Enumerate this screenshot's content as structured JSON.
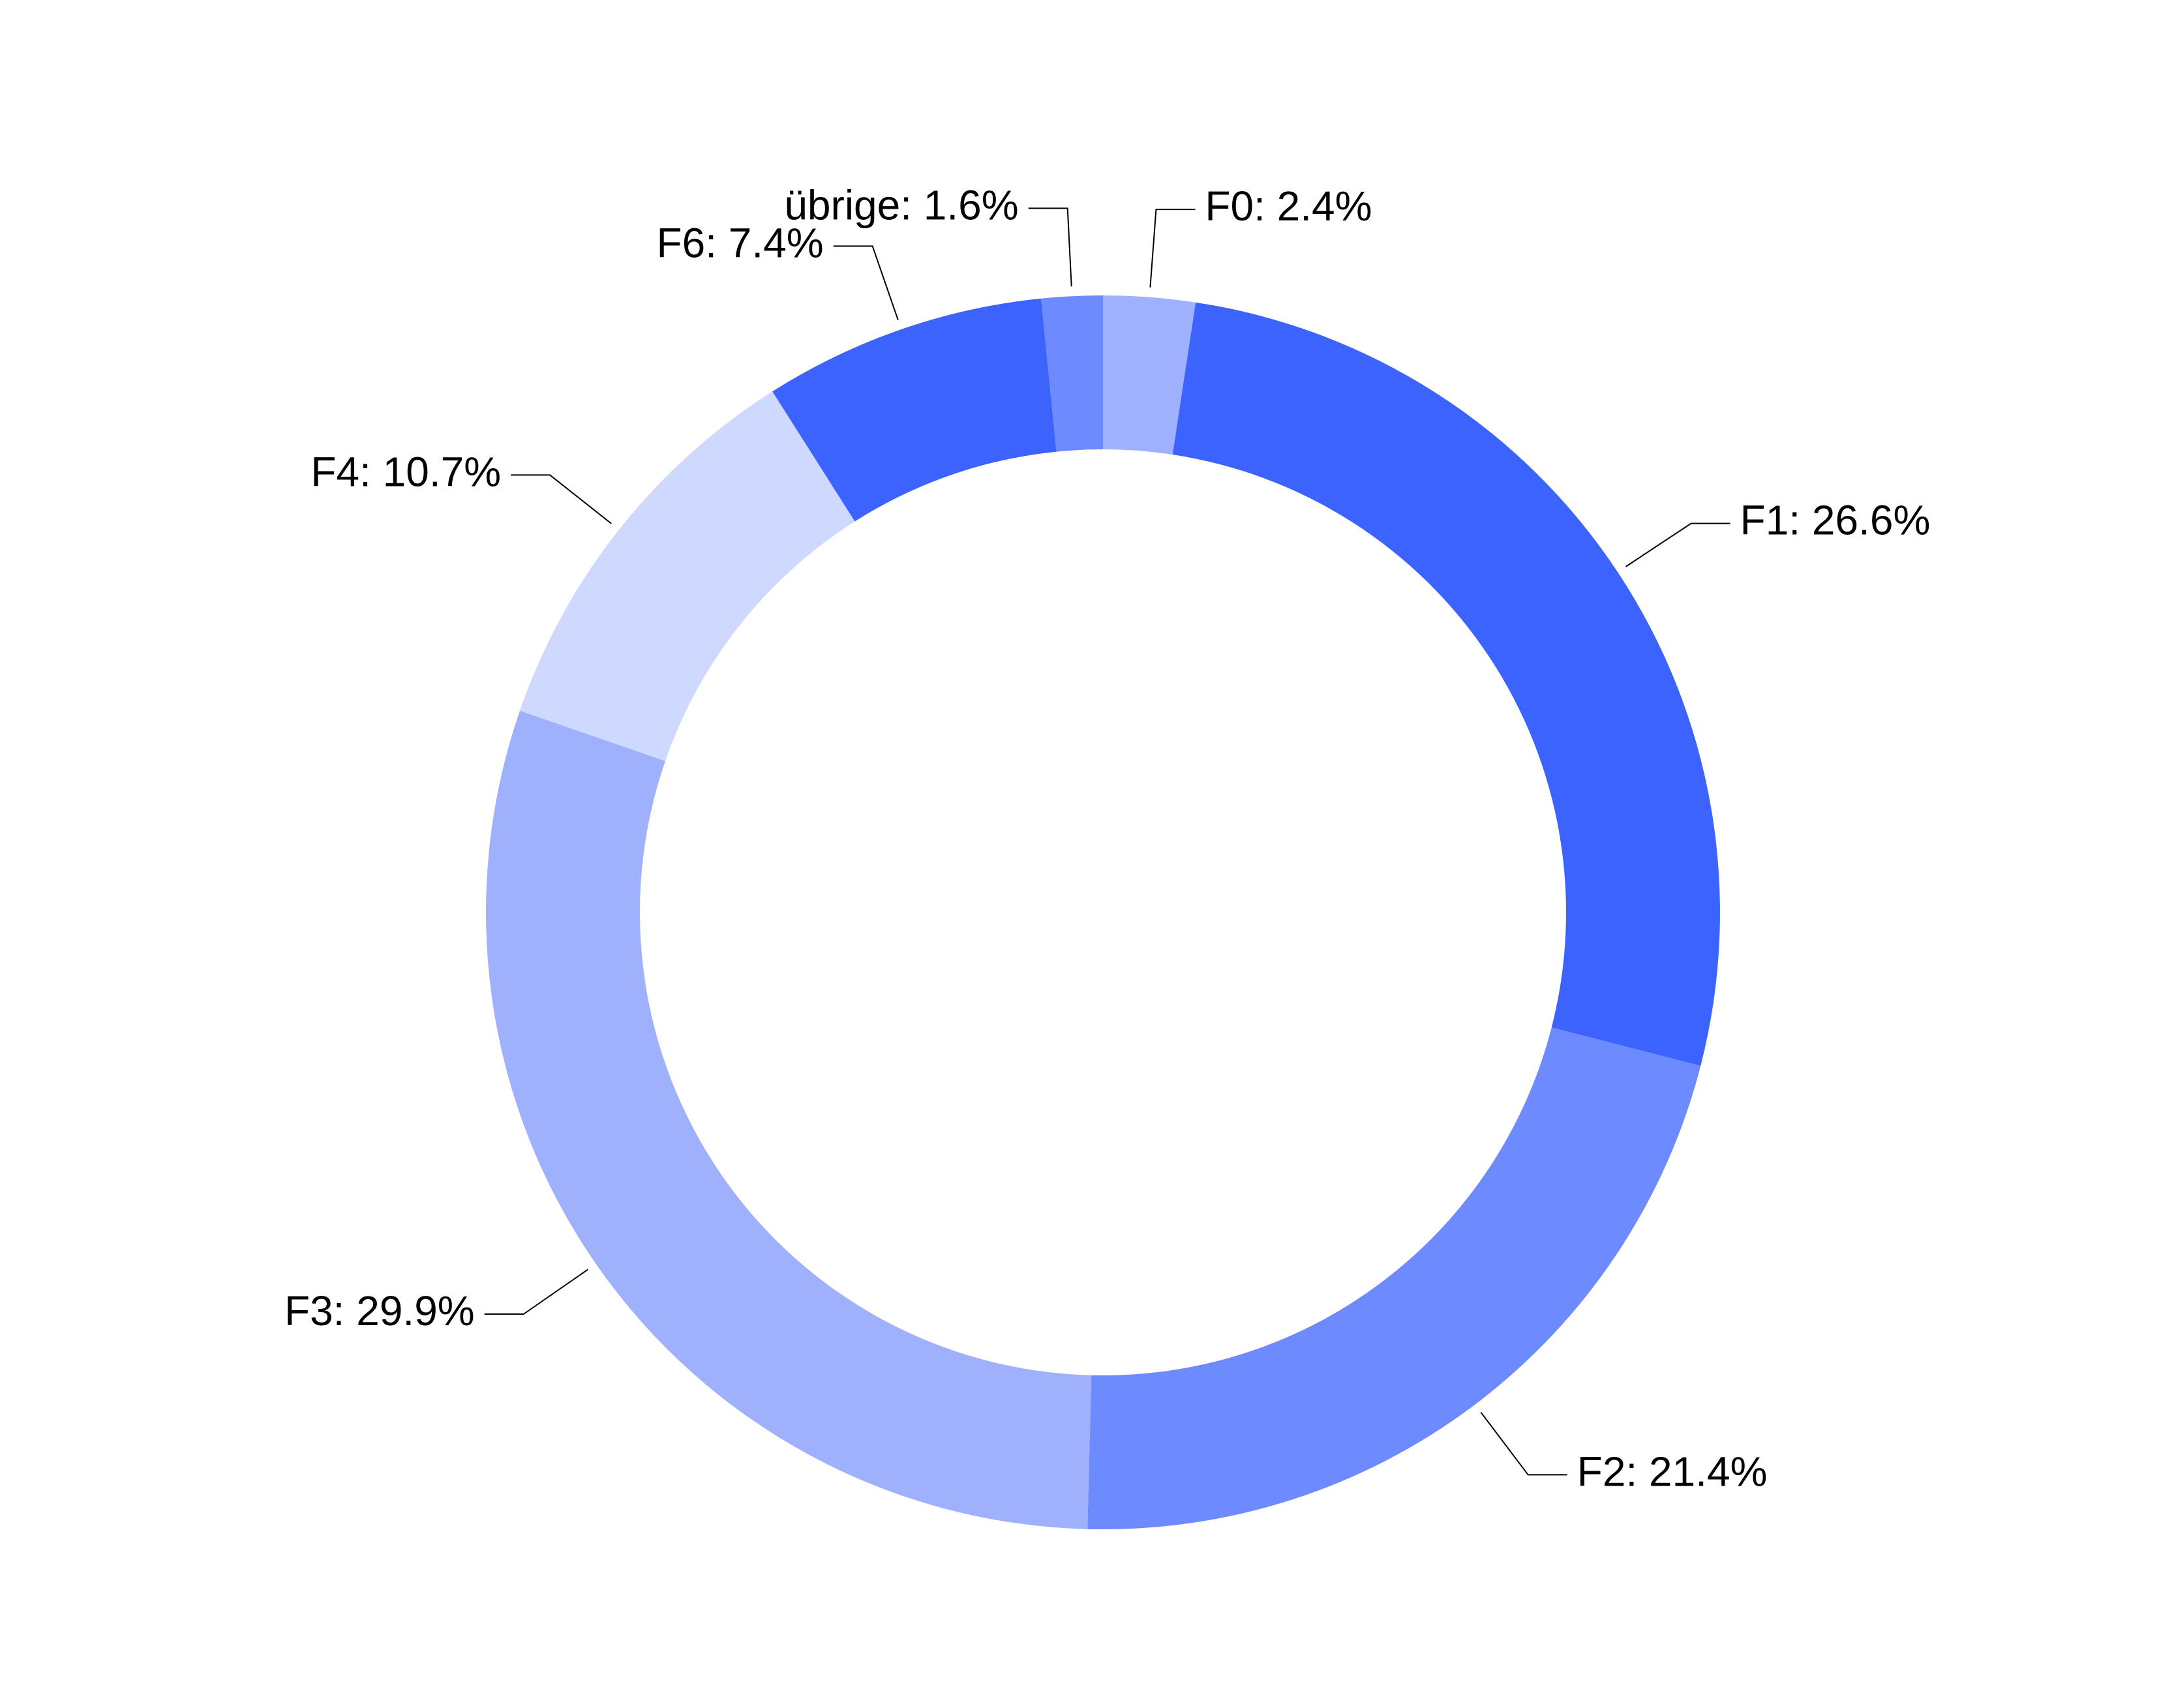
{
  "chart_data": {
    "type": "donut",
    "categories": [
      "F0",
      "F1",
      "F2",
      "F3",
      "F4",
      "F6",
      "übrige"
    ],
    "values": [
      2.4,
      26.6,
      21.4,
      29.9,
      10.7,
      7.4,
      1.6
    ],
    "value_labels": [
      "F0: 2.4%",
      "F1: 26.6%",
      "F2: 21.4%",
      "F3: 29.9%",
      "F4: 10.7%",
      "F6: 7.4%",
      "übrige: 1.6%"
    ],
    "colors": [
      "#9fb1fd",
      "#3d63fe",
      "#6d8afe",
      "#9fb1fd",
      "#cfd8fe",
      "#3d63fe",
      "#6d8afe"
    ]
  }
}
